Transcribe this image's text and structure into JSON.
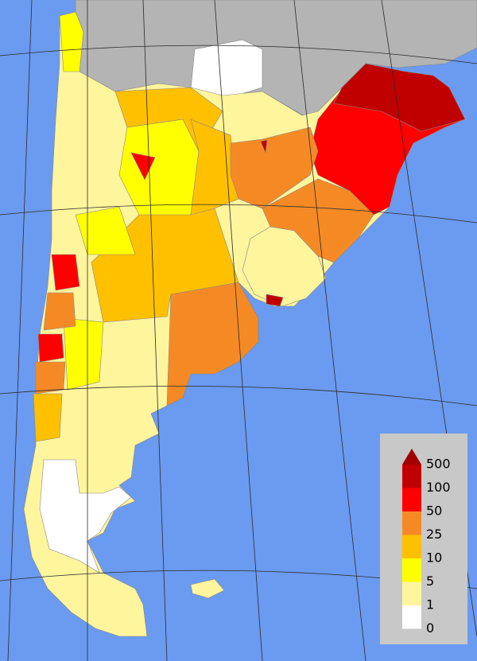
{
  "legend": {
    "labels": [
      "500",
      "100",
      "50",
      "25",
      "10",
      "5",
      "1",
      "0"
    ],
    "colors": [
      "#c00000",
      "#ff0000",
      "#f58a25",
      "#ffc000",
      "#ffff00",
      "#fff59d",
      "#ffffff"
    ],
    "arrow_color": "#a00000"
  }
}
